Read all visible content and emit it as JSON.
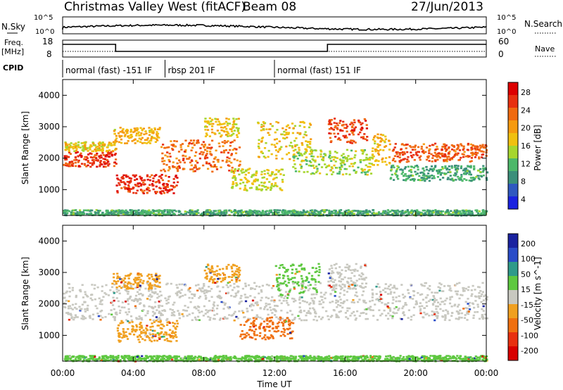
{
  "header": {
    "station": "Christmas Valley West (fitACF)",
    "beam": "Beam 08",
    "date": "27/Jun/2013"
  },
  "panel_labels": {
    "nsky": "N.Sky",
    "nsearch": "N.Search",
    "freq": "Freq.",
    "freq_unit": "[MHz]",
    "nave": "Nave",
    "cpid": "CPID"
  },
  "aux_ticks": {
    "nsky_left": [
      "10^5",
      "10^0"
    ],
    "nsky_right": [
      "10^5",
      "10^0"
    ],
    "freq_left": [
      "18",
      "8"
    ],
    "nave_right": [
      "60",
      "0"
    ]
  },
  "cpid_segments": [
    {
      "label": "normal (fast) -151 IF",
      "start_hour": 0.0
    },
    {
      "label": "rbsp 201 IF",
      "start_hour": 5.8
    },
    {
      "label": "normal (fast) 151 IF",
      "start_hour": 12.0
    }
  ],
  "power_colorbar": {
    "label": "Power [dB]",
    "ticks": [
      "4",
      "8",
      "12",
      "16",
      "20",
      "24",
      "28"
    ],
    "colors": [
      "#1a22e0",
      "#2f58c0",
      "#3b8f7a",
      "#4db86a",
      "#a6d62f",
      "#f0c010",
      "#f59a10",
      "#f06a10",
      "#e83010",
      "#dd0000"
    ]
  },
  "velocity_colorbar": {
    "label": "Velocity [m s^-1]",
    "ticks": [
      "200",
      "100",
      "50",
      "15",
      "-15",
      "-50",
      "-100",
      "-200"
    ],
    "colors": [
      "#1a22a0",
      "#2a4cc8",
      "#2f9a8a",
      "#5ec840",
      "#c8c8c0",
      "#f0a020",
      "#f07010",
      "#e83010",
      "#d80000"
    ]
  },
  "chart_data": [
    {
      "type": "heatmap",
      "name": "power",
      "ylabel": "Slant Range [km]",
      "xlabel": "",
      "x_ticks": [
        "00:00",
        "04:00",
        "08:00",
        "12:00",
        "16:00",
        "20:00",
        "00:00"
      ],
      "y_ticks": [
        "1000",
        "2000",
        "3000",
        "4000"
      ],
      "xlim_hours": [
        0,
        24
      ],
      "ylim_km": [
        180,
        4500
      ],
      "bands": [
        {
          "t0": 0.0,
          "t1": 3.0,
          "r0": 1750,
          "r1": 2250,
          "level": 0.88
        },
        {
          "t0": 0.0,
          "t1": 3.0,
          "r0": 2250,
          "r1": 2550,
          "level": 0.55
        },
        {
          "t0": 3.0,
          "t1": 6.5,
          "r0": 900,
          "r1": 1500,
          "level": 0.9
        },
        {
          "t0": 2.8,
          "t1": 5.5,
          "r0": 2500,
          "r1": 3000,
          "level": 0.6
        },
        {
          "t0": 5.5,
          "t1": 10.0,
          "r0": 1600,
          "r1": 2600,
          "level": 0.78
        },
        {
          "t0": 8.0,
          "t1": 10.0,
          "r0": 2700,
          "r1": 3300,
          "level": 0.55
        },
        {
          "t0": 9.5,
          "t1": 12.5,
          "r0": 1000,
          "r1": 1700,
          "level": 0.5
        },
        {
          "t0": 11.0,
          "t1": 14.0,
          "r0": 2000,
          "r1": 3200,
          "level": 0.55
        },
        {
          "t0": 13.0,
          "t1": 17.5,
          "r0": 1500,
          "r1": 2300,
          "level": 0.45
        },
        {
          "t0": 15.0,
          "t1": 17.2,
          "r0": 2500,
          "r1": 3300,
          "level": 0.85
        },
        {
          "t0": 17.5,
          "t1": 18.5,
          "r0": 1800,
          "r1": 2800,
          "level": 0.6
        },
        {
          "t0": 18.5,
          "t1": 24.0,
          "r0": 1900,
          "r1": 2500,
          "level": 0.82
        },
        {
          "t0": 18.5,
          "t1": 24.0,
          "r0": 1300,
          "r1": 1800,
          "level": 0.3
        },
        {
          "t0": 0.0,
          "t1": 24.0,
          "r0": 200,
          "r1": 380,
          "level": 0.3
        }
      ]
    },
    {
      "type": "heatmap",
      "name": "velocity",
      "ylabel": "Slant Range [km]",
      "xlabel": "Time UT",
      "x_ticks": [
        "00:00",
        "04:00",
        "08:00",
        "12:00",
        "16:00",
        "20:00",
        "00:00"
      ],
      "y_ticks": [
        "1000",
        "2000",
        "3000",
        "4000"
      ],
      "xlim_hours": [
        0,
        24
      ],
      "ylim_km": [
        180,
        4500
      ],
      "bands": [
        {
          "t0": 0.0,
          "t1": 24.0,
          "r0": 1500,
          "r1": 2700,
          "v": 0
        },
        {
          "t0": 3.0,
          "t1": 6.5,
          "r0": 800,
          "r1": 1500,
          "v": -40
        },
        {
          "t0": 2.8,
          "t1": 5.5,
          "r0": 2500,
          "r1": 3000,
          "v": -45
        },
        {
          "t0": 8.0,
          "t1": 10.0,
          "r0": 2700,
          "r1": 3300,
          "v": -40
        },
        {
          "t0": 10.0,
          "t1": 13.0,
          "r0": 900,
          "r1": 1600,
          "v": -70
        },
        {
          "t0": 12.0,
          "t1": 14.5,
          "r0": 2300,
          "r1": 3300,
          "v": 40
        },
        {
          "t0": 15.0,
          "t1": 17.2,
          "r0": 2500,
          "r1": 3300,
          "v": 0
        },
        {
          "t0": 0.0,
          "t1": 24.0,
          "r0": 200,
          "r1": 380,
          "v": 40
        }
      ]
    }
  ]
}
